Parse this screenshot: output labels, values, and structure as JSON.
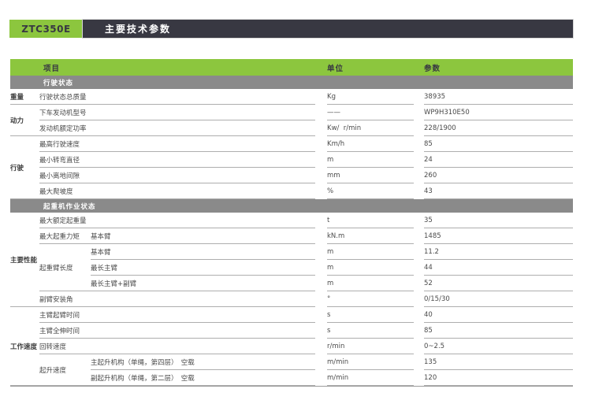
{
  "page": {
    "model": "ZTC350E",
    "title": "主要技术参数"
  },
  "colors": {
    "accent_green": "#8CC63E",
    "header_dark": "#383842",
    "section_gray": "#8A8A8A"
  },
  "table": {
    "headers": {
      "item": "项目",
      "unit": "单位",
      "value": "参数"
    },
    "sections": [
      {
        "title": "行驶状态",
        "groups": [
          {
            "label": "重量",
            "rows": [
              {
                "item": "行驶状态总质量",
                "unit": "Kg",
                "value": "38935"
              }
            ]
          },
          {
            "label": "动力",
            "rows": [
              {
                "item": "下车发动机型号",
                "unit": "——",
                "value": "WP9H310E50"
              },
              {
                "item": "发动机额定功率",
                "unit": "Kw/  r/min",
                "value": "228/1900"
              }
            ]
          },
          {
            "label": "行驶",
            "rows": [
              {
                "item": "最高行驶速度",
                "unit": "Km/h",
                "value": "85"
              },
              {
                "item": "最小转弯直径",
                "unit": "m",
                "value": "24"
              },
              {
                "item": "最小离地间隙",
                "unit": "mm",
                "value": "260"
              },
              {
                "item": "最大爬坡度",
                "unit": "%",
                "value": "43"
              }
            ]
          }
        ]
      },
      {
        "title": "起重机作业状态",
        "groups": [
          {
            "label": "主要性能",
            "rows": [
              {
                "item": "最大额定起重量",
                "unit": "t",
                "value": "35"
              },
              {
                "item": "最大起重力矩",
                "sub": "基本臂",
                "unit": "kN.m",
                "value": "1485"
              },
              {
                "item": "起重臂长度",
                "subrows": [
                  {
                    "sub": "基本臂",
                    "unit": "m",
                    "value": "11.2"
                  },
                  {
                    "sub": "最长主臂",
                    "unit": "m",
                    "value": "44"
                  },
                  {
                    "sub": "最长主臂+副臂",
                    "unit": "m",
                    "value": "52"
                  }
                ]
              },
              {
                "item": "副臂安装角",
                "unit": "°",
                "value": "0/15/30"
              }
            ]
          },
          {
            "label": "工作速度",
            "rows": [
              {
                "item": "主臂起臂时间",
                "unit": "s",
                "value": "40"
              },
              {
                "item": "主臂全伸时间",
                "unit": "s",
                "value": "85"
              },
              {
                "item": "回转速度",
                "unit": "r/min",
                "value": "0~2.5"
              },
              {
                "item": "起升速度",
                "subrows": [
                  {
                    "sub": "主起升机构（单绳，第四层）　空载",
                    "unit": "m/min",
                    "value": "135"
                  },
                  {
                    "sub": "副起升机构（单绳，第二层）　空载",
                    "unit": "m/min",
                    "value": "120"
                  }
                ]
              }
            ]
          }
        ]
      }
    ]
  }
}
